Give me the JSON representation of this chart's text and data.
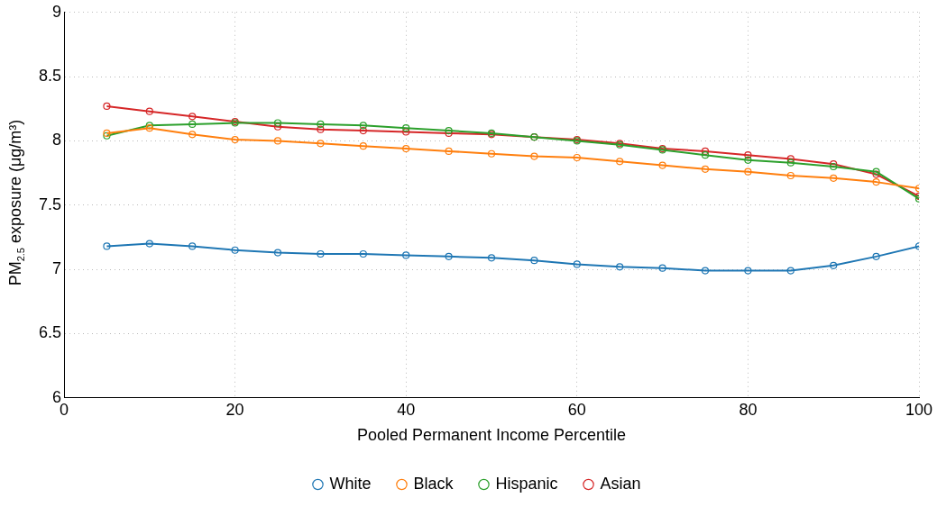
{
  "chart_data": {
    "type": "line",
    "xlabel": "Pooled Permanent Income Percentile",
    "ylabel": "PM$_{2.5}$ exposure (μg/m³)",
    "x": [
      5,
      10,
      15,
      20,
      25,
      30,
      35,
      40,
      45,
      50,
      55,
      60,
      65,
      70,
      75,
      80,
      85,
      90,
      95,
      100
    ],
    "series": [
      {
        "name": "White",
        "color": "#1f77b4",
        "values": [
          7.18,
          7.2,
          7.18,
          7.15,
          7.13,
          7.12,
          7.12,
          7.11,
          7.1,
          7.09,
          7.07,
          7.04,
          7.02,
          7.01,
          6.99,
          6.99,
          6.99,
          7.03,
          7.1,
          7.18
        ]
      },
      {
        "name": "Black",
        "color": "#ff7f0e",
        "values": [
          8.06,
          8.1,
          8.05,
          8.01,
          8.0,
          7.98,
          7.96,
          7.94,
          7.92,
          7.9,
          7.88,
          7.87,
          7.84,
          7.81,
          7.78,
          7.76,
          7.73,
          7.71,
          7.68,
          7.63
        ]
      },
      {
        "name": "Hispanic",
        "color": "#2ca02c",
        "values": [
          8.04,
          8.12,
          8.13,
          8.14,
          8.14,
          8.13,
          8.12,
          8.1,
          8.08,
          8.06,
          8.03,
          8.0,
          7.97,
          7.93,
          7.89,
          7.85,
          7.83,
          7.8,
          7.76,
          7.55
        ]
      },
      {
        "name": "Asian",
        "color": "#d62728",
        "values": [
          8.27,
          8.23,
          8.19,
          8.15,
          8.11,
          8.09,
          8.08,
          8.07,
          8.06,
          8.05,
          8.03,
          8.01,
          7.98,
          7.94,
          7.92,
          7.89,
          7.86,
          7.82,
          7.74,
          7.57
        ]
      }
    ],
    "xlim": [
      0,
      100
    ],
    "xticks": [
      0,
      20,
      40,
      60,
      80,
      100
    ],
    "ylim": [
      6,
      9
    ],
    "yticks": [
      6,
      6.5,
      7,
      7.5,
      8,
      8.5,
      9
    ],
    "grid": true,
    "legend": "bottom",
    "marker": "circle",
    "line_style": "solid"
  }
}
